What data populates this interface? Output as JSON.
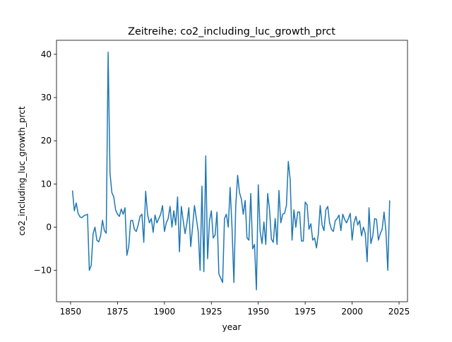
{
  "chart_data": {
    "type": "line",
    "title": "Zeitreihe: co2_including_luc_growth_prct",
    "xlabel": "year",
    "ylabel": "co2_including_luc_growth_prct",
    "x": [
      1851,
      1852,
      1853,
      1854,
      1855,
      1856,
      1857,
      1858,
      1859,
      1860,
      1861,
      1862,
      1863,
      1864,
      1865,
      1866,
      1867,
      1868,
      1869,
      1870,
      1871,
      1872,
      1873,
      1874,
      1875,
      1876,
      1877,
      1878,
      1879,
      1880,
      1881,
      1882,
      1883,
      1884,
      1885,
      1886,
      1887,
      1888,
      1889,
      1890,
      1891,
      1892,
      1893,
      1894,
      1895,
      1896,
      1897,
      1898,
      1899,
      1900,
      1901,
      1902,
      1903,
      1904,
      1905,
      1906,
      1907,
      1908,
      1909,
      1910,
      1911,
      1912,
      1913,
      1914,
      1915,
      1916,
      1917,
      1918,
      1919,
      1920,
      1921,
      1922,
      1923,
      1924,
      1925,
      1926,
      1927,
      1928,
      1929,
      1930,
      1931,
      1932,
      1933,
      1934,
      1935,
      1936,
      1937,
      1938,
      1939,
      1940,
      1941,
      1942,
      1943,
      1944,
      1945,
      1946,
      1947,
      1948,
      1949,
      1950,
      1951,
      1952,
      1953,
      1954,
      1955,
      1956,
      1957,
      1958,
      1959,
      1960,
      1961,
      1962,
      1963,
      1964,
      1965,
      1966,
      1967,
      1968,
      1969,
      1970,
      1971,
      1972,
      1973,
      1974,
      1975,
      1976,
      1977,
      1978,
      1979,
      1980,
      1981,
      1982,
      1983,
      1984,
      1985,
      1986,
      1987,
      1988,
      1989,
      1990,
      1991,
      1992,
      1993,
      1994,
      1995,
      1996,
      1997,
      1998,
      1999,
      2000,
      2001,
      2002,
      2003,
      2004,
      2005,
      2006,
      2007,
      2008,
      2009,
      2010,
      2011,
      2012,
      2013,
      2014,
      2015,
      2016,
      2017,
      2018,
      2019,
      2020
    ],
    "series": [
      {
        "color": "#1f77b4",
        "values": [
          8.5,
          3.8,
          5.6,
          3.2,
          2.4,
          2.2,
          2.6,
          2.8,
          3.0,
          -10,
          -8.8,
          -1.5,
          0,
          -3,
          -3.4,
          -2,
          1.6,
          -0.8,
          -1.4,
          40.5,
          12.5,
          8,
          7,
          4,
          3,
          2.5,
          4.2,
          3,
          4.5,
          -6.5,
          -4.5,
          1.5,
          1.6,
          -0.5,
          -1,
          0.5,
          2.5,
          3,
          -3.5,
          8.3,
          3,
          1,
          2,
          -1.2,
          2.8,
          1,
          2,
          3,
          5,
          -1,
          1,
          2,
          4.8,
          0,
          3.8,
          0.5,
          7,
          -5.7,
          4.8,
          1.5,
          -1.5,
          1,
          4.5,
          -4.5,
          0,
          5,
          2,
          -1,
          -10,
          9.5,
          -10.3,
          16.5,
          -7.3,
          1.5,
          3.8,
          -2.5,
          -1.8,
          3.5,
          -10.8,
          -11.8,
          -12.8,
          2,
          3,
          0,
          9.2,
          0,
          -12.8,
          5,
          12,
          8,
          6.5,
          3,
          6.2,
          -2.5,
          -3,
          7.8,
          -5,
          -4,
          -14.5,
          9.8,
          -1,
          -3.8,
          1.2,
          -4,
          7.8,
          4,
          -2.8,
          -3.5,
          2,
          -4,
          8.5,
          1,
          3,
          3.2,
          5,
          15.2,
          11,
          -3,
          4,
          0,
          3.5,
          3.5,
          -3.2,
          -3.2,
          5.8,
          5.2,
          -0.5,
          0.8,
          -3,
          -2.5,
          -4.8,
          -1.5,
          5,
          0.5,
          -0.8,
          4,
          4.8,
          1,
          -0.5,
          -1,
          1.5,
          2,
          2.8,
          -0.8,
          3,
          1.8,
          1,
          2,
          3.2,
          -3,
          1,
          2.5,
          0.5,
          1.5,
          -2,
          0,
          -1.5,
          -8,
          4.5,
          -3.8,
          -2,
          2,
          1.8,
          -3,
          -1.5,
          -0.5,
          3.5,
          -1,
          -10,
          6.2
        ]
      }
    ],
    "xlim": [
      1842.5,
      2029.5
    ],
    "xticks": [
      1850,
      1875,
      1900,
      1925,
      1950,
      1975,
      2000,
      2025
    ],
    "ylim": [
      -17.25,
      43.25
    ],
    "yticks": [
      {
        "value": -10,
        "label": "−10"
      },
      0,
      10,
      20,
      30,
      40
    ]
  }
}
